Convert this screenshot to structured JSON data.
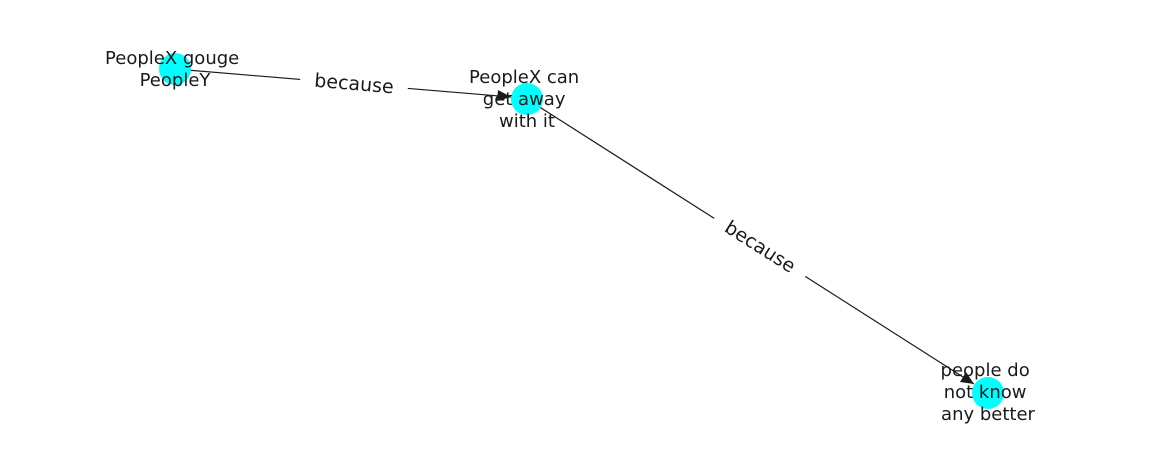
{
  "diagram": {
    "node_color": "#00ffff",
    "nodes": [
      {
        "id": "n1",
        "lines": [
          "PeopleX gouge",
          "PeopleY"
        ]
      },
      {
        "id": "n2",
        "lines": [
          "PeopleX can",
          "get away",
          "with it"
        ]
      },
      {
        "id": "n3",
        "lines": [
          "people do",
          "not know",
          "any better"
        ]
      }
    ],
    "edges": [
      {
        "from": "n1",
        "to": "n2",
        "label": "because"
      },
      {
        "from": "n2",
        "to": "n3",
        "label": "because"
      }
    ]
  }
}
